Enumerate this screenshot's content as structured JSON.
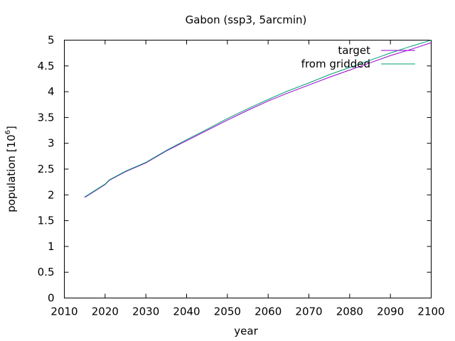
{
  "chart_data": {
    "type": "line",
    "title": "Gabon (ssp3, 5arcmin)",
    "xlabel": "year",
    "ylabel_main": "population [10",
    "ylabel_exp": "6",
    "ylabel_close": "]",
    "xlim": [
      2010,
      2100
    ],
    "ylim": [
      0,
      5
    ],
    "xticks": [
      2010,
      2020,
      2030,
      2040,
      2050,
      2060,
      2070,
      2080,
      2090,
      2100
    ],
    "xtick_labels": [
      "2010",
      "2020",
      "2030",
      "2040",
      "2050",
      "2060",
      "2070",
      "2080",
      "2090",
      "2100"
    ],
    "yticks": [
      0,
      0.5,
      1,
      1.5,
      2,
      2.5,
      3,
      3.5,
      4,
      4.5,
      5
    ],
    "ytick_labels": [
      "0",
      "0.5",
      "1",
      "1.5",
      "2",
      "2.5",
      "3",
      "3.5",
      "4",
      "4.5",
      "5"
    ],
    "grid": false,
    "legend_position": "top-right",
    "series": [
      {
        "name": "target",
        "color": "#9400d3",
        "x": [
          2015,
          2020,
          2021,
          2025,
          2030,
          2035,
          2040,
          2045,
          2050,
          2055,
          2060,
          2065,
          2070,
          2075,
          2080,
          2085,
          2090,
          2095,
          2100
        ],
        "y": [
          1.95,
          2.2,
          2.28,
          2.45,
          2.62,
          2.85,
          3.05,
          3.25,
          3.45,
          3.64,
          3.82,
          3.98,
          4.13,
          4.28,
          4.42,
          4.56,
          4.7,
          4.82,
          4.95
        ]
      },
      {
        "name": "from gridded",
        "color": "#009e73",
        "x": [
          2015,
          2020,
          2021,
          2025,
          2030,
          2035,
          2040,
          2045,
          2050,
          2055,
          2060,
          2065,
          2070,
          2075,
          2080,
          2085,
          2090,
          2095,
          2100
        ],
        "y": [
          1.96,
          2.21,
          2.29,
          2.46,
          2.63,
          2.86,
          3.07,
          3.27,
          3.48,
          3.67,
          3.85,
          4.02,
          4.17,
          4.33,
          4.47,
          4.61,
          4.75,
          4.88,
          5.0
        ]
      }
    ]
  }
}
